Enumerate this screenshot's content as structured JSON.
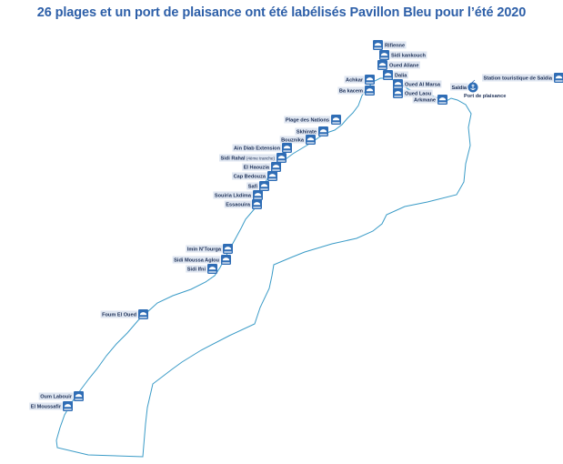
{
  "title": "26 plages et un port de plaisance ont été labélisés Pavillon Bleu pour l’été 2020",
  "colors": {
    "title": "#2d5fa8",
    "outline": "#3a9bc7",
    "icon": "#2f6db5",
    "label_bg": "#dfe6f1",
    "label_text": "#1c2f56"
  },
  "beach_icon": "beach-umbrella-icon",
  "marina_icon": "anchor-icon",
  "beaches": [
    {
      "id": "rifienne",
      "name": "Rifienne"
    },
    {
      "id": "sidi-kankouch",
      "name": "Sidi kankouch"
    },
    {
      "id": "oued-aliane",
      "name": "Oued Aliane"
    },
    {
      "id": "dalia",
      "name": "Dalia"
    },
    {
      "id": "achkar",
      "name": "Achkar"
    },
    {
      "id": "ba-kacem",
      "name": "Ba kacem"
    },
    {
      "id": "oued-al-marsa",
      "name": "Oued Al Marsa"
    },
    {
      "id": "oued-laou",
      "name": "Oued Laou"
    },
    {
      "id": "arkmane",
      "name": "Arkmane"
    },
    {
      "id": "station-saidia",
      "name": "Station touristique de Saïdia"
    },
    {
      "id": "plage-des-nations",
      "name": "Plage des Nations"
    },
    {
      "id": "skhirate",
      "name": "Skhirate"
    },
    {
      "id": "bouznika",
      "name": "Bouznika"
    },
    {
      "id": "ain-diab-extension",
      "name": "Ain Diab Extension"
    },
    {
      "id": "sidi-rahal",
      "name": "Sidi Rahal",
      "note": "(4ème tranche)"
    },
    {
      "id": "el-haouzia",
      "name": "El Haouzia"
    },
    {
      "id": "cap-beddouza",
      "name": "Cap Bedouza"
    },
    {
      "id": "safi",
      "name": "Safi"
    },
    {
      "id": "souiria-lkdima",
      "name": "Souiria Lkdima"
    },
    {
      "id": "essaouira",
      "name": "Essaouira"
    },
    {
      "id": "imin-ntourga",
      "name": "Imin N’Tourga"
    },
    {
      "id": "sidi-moussa-aglou",
      "name": "Sidi Moussa Aglou"
    },
    {
      "id": "sidi-ifni",
      "name": "Sidi Ifni"
    },
    {
      "id": "foum-el-oued",
      "name": "Foum El Oued"
    },
    {
      "id": "oum-labouir",
      "name": "Oum Labouir"
    },
    {
      "id": "el-moussafir",
      "name": "El Moussafir"
    }
  ],
  "marina": {
    "name": "Saïdia",
    "caption": "Port de plaisance"
  }
}
